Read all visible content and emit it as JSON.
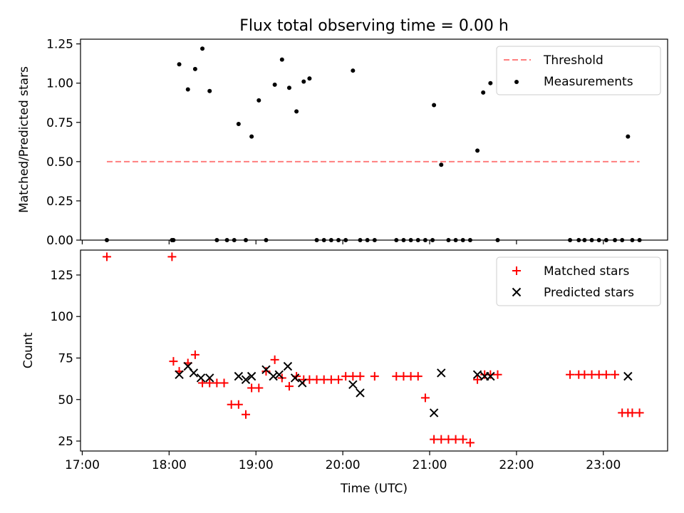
{
  "title": "Flux total observing time = 0.00 h",
  "chart_data": [
    {
      "type": "scatter",
      "ylabel": "Matched/Predicted stars",
      "xlabel": "",
      "ylim": [
        0.0,
        1.28
      ],
      "yticks": [
        0.0,
        0.25,
        0.5,
        0.75,
        1.0,
        1.25
      ],
      "ytick_labels": [
        "0.00",
        "0.25",
        "0.50",
        "0.75",
        "1.00",
        "1.25"
      ],
      "xlim_hours": [
        16.98,
        23.74
      ],
      "legend_position": "top-right",
      "series": [
        {
          "name": "Threshold",
          "kind": "dashed-line",
          "color": "#ff7f7f",
          "x": [
            "17:17",
            "23:25"
          ],
          "y": [
            0.5,
            0.5
          ]
        },
        {
          "name": "Measurements",
          "kind": "dot",
          "color": "#000000",
          "x": [
            "17:17",
            "18:02",
            "18:03",
            "18:07",
            "18:13",
            "18:18",
            "18:23",
            "18:28",
            "18:33",
            "18:40",
            "18:45",
            "18:48",
            "18:53",
            "18:57",
            "19:02",
            "19:07",
            "19:13",
            "19:18",
            "19:23",
            "19:28",
            "19:33",
            "19:37",
            "19:42",
            "19:47",
            "19:52",
            "19:57",
            "20:02",
            "20:07",
            "20:12",
            "20:17",
            "20:22",
            "20:37",
            "20:42",
            "20:47",
            "20:52",
            "20:57",
            "21:02",
            "21:03",
            "21:08",
            "21:13",
            "21:18",
            "21:23",
            "21:28",
            "21:33",
            "21:37",
            "21:42",
            "21:47",
            "22:37",
            "22:43",
            "22:47",
            "22:52",
            "22:57",
            "23:02",
            "23:08",
            "23:13",
            "23:17",
            "23:20",
            "23:25"
          ],
          "y": [
            0.0,
            0.0,
            0.0,
            1.12,
            0.96,
            1.09,
            1.22,
            0.95,
            0.0,
            0.0,
            0.0,
            0.74,
            0.0,
            0.66,
            0.89,
            0.0,
            0.99,
            1.15,
            0.97,
            0.82,
            1.01,
            1.03,
            0.0,
            0.0,
            0.0,
            0.0,
            0.0,
            1.08,
            0.0,
            0.0,
            0.0,
            0.0,
            0.0,
            0.0,
            0.0,
            0.0,
            0.0,
            0.86,
            0.48,
            0.0,
            0.0,
            0.0,
            0.0,
            0.57,
            0.94,
            1.0,
            0.0,
            0.0,
            0.0,
            0.0,
            0.0,
            0.0,
            0.0,
            0.0,
            0.0,
            0.66,
            0.0,
            0.0
          ]
        }
      ]
    },
    {
      "type": "scatter",
      "ylabel": "Count",
      "xlabel": "Time (UTC)",
      "ylim": [
        19.0,
        140.0
      ],
      "yticks": [
        25,
        50,
        75,
        100,
        125
      ],
      "ytick_labels": [
        "25",
        "50",
        "75",
        "100",
        "125"
      ],
      "xlim_hours": [
        16.98,
        23.74
      ],
      "xticks": [
        "17:00",
        "18:00",
        "19:00",
        "20:00",
        "21:00",
        "22:00",
        "23:00"
      ],
      "legend_position": "top-right",
      "series": [
        {
          "name": "Matched stars",
          "kind": "plus",
          "color": "#ff0000",
          "x": [
            "17:17",
            "18:02",
            "18:03",
            "18:07",
            "18:13",
            "18:18",
            "18:23",
            "18:28",
            "18:33",
            "18:38",
            "18:43",
            "18:48",
            "18:53",
            "18:57",
            "19:02",
            "19:07",
            "19:13",
            "19:18",
            "19:23",
            "19:28",
            "19:33",
            "19:37",
            "19:42",
            "19:47",
            "19:52",
            "19:57",
            "20:02",
            "20:07",
            "20:12",
            "20:22",
            "20:37",
            "20:42",
            "20:47",
            "20:52",
            "20:57",
            "21:03",
            "21:08",
            "21:13",
            "21:18",
            "21:23",
            "21:28",
            "21:33",
            "21:38",
            "21:42",
            "21:47",
            "22:37",
            "22:43",
            "22:47",
            "22:52",
            "22:57",
            "23:02",
            "23:08",
            "23:13",
            "23:17",
            "23:20",
            "23:25"
          ],
          "y": [
            136,
            136,
            73,
            67,
            72,
            77,
            60,
            60,
            60,
            60,
            47,
            47,
            41,
            57,
            57,
            67,
            74,
            63,
            58,
            64,
            62,
            62,
            62,
            62,
            62,
            62,
            64,
            64,
            64,
            64,
            64,
            64,
            64,
            64,
            51,
            26,
            26,
            26,
            26,
            26,
            24,
            62,
            65,
            65,
            65,
            65,
            65,
            65,
            65,
            65,
            65,
            65,
            42,
            42,
            42,
            42
          ]
        },
        {
          "name": "Predicted stars",
          "kind": "cross",
          "color": "#000000",
          "x": [
            "18:07",
            "18:13",
            "18:17",
            "18:22",
            "18:28",
            "18:48",
            "18:53",
            "18:57",
            "19:07",
            "19:12",
            "19:16",
            "19:22",
            "19:27",
            "19:32",
            "20:07",
            "20:12",
            "21:03",
            "21:08",
            "21:33",
            "21:38",
            "21:42",
            "23:17"
          ],
          "y": [
            65,
            70,
            66,
            63,
            63,
            64,
            62,
            64,
            68,
            64,
            65,
            70,
            63,
            60,
            59,
            54,
            42,
            66,
            65,
            64,
            64,
            64
          ]
        }
      ]
    }
  ]
}
